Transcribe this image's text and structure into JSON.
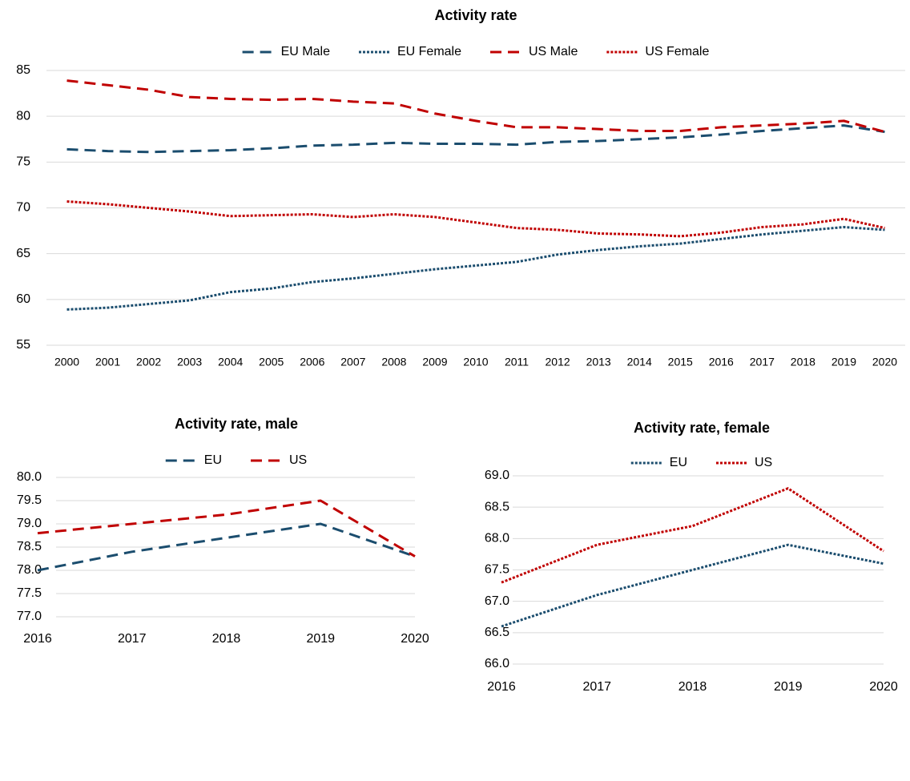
{
  "chart_data": [
    {
      "type": "line",
      "title": "Activity rate",
      "categories": [
        "2000",
        "2001",
        "2002",
        "2003",
        "2004",
        "2005",
        "2006",
        "2007",
        "2008",
        "2009",
        "2010",
        "2011",
        "2012",
        "2013",
        "2014",
        "2015",
        "2016",
        "2017",
        "2018",
        "2019",
        "2020"
      ],
      "series": [
        {
          "name": "EU Male",
          "color": "#1b4d6e",
          "style": "dashed",
          "values": [
            76.4,
            76.2,
            76.1,
            76.2,
            76.3,
            76.5,
            76.8,
            76.9,
            77.1,
            77.0,
            77.0,
            76.9,
            77.2,
            77.3,
            77.5,
            77.7,
            78.0,
            78.4,
            78.7,
            79.0,
            78.3
          ]
        },
        {
          "name": "EU Female",
          "color": "#1b4d6e",
          "style": "dotted",
          "values": [
            58.9,
            59.1,
            59.5,
            59.9,
            60.8,
            61.2,
            61.9,
            62.3,
            62.8,
            63.3,
            63.7,
            64.1,
            64.9,
            65.4,
            65.8,
            66.1,
            66.6,
            67.1,
            67.5,
            67.9,
            67.6
          ]
        },
        {
          "name": "US Male",
          "color": "#c00000",
          "style": "dashed",
          "values": [
            83.9,
            83.4,
            82.9,
            82.1,
            81.9,
            81.8,
            81.9,
            81.6,
            81.4,
            80.3,
            79.5,
            78.8,
            78.8,
            78.6,
            78.4,
            78.4,
            78.8,
            79.0,
            79.2,
            79.5,
            78.3
          ]
        },
        {
          "name": "US Female",
          "color": "#c00000",
          "style": "dotted",
          "values": [
            70.7,
            70.4,
            70.0,
            69.6,
            69.1,
            69.2,
            69.3,
            69.0,
            69.3,
            69.0,
            68.4,
            67.8,
            67.6,
            67.2,
            67.1,
            66.9,
            67.3,
            67.9,
            68.2,
            68.8,
            67.8
          ]
        }
      ],
      "ylim": [
        55,
        85
      ],
      "yticks": [
        55,
        60,
        65,
        70,
        75,
        80,
        85
      ],
      "grid": true
    },
    {
      "type": "line",
      "title": "Activity rate, male",
      "categories": [
        "2016",
        "2017",
        "2018",
        "2019",
        "2020"
      ],
      "series": [
        {
          "name": "EU",
          "color": "#1b4d6e",
          "style": "dashed",
          "values": [
            78.0,
            78.4,
            78.7,
            79.0,
            78.3
          ]
        },
        {
          "name": "US",
          "color": "#c00000",
          "style": "dashed",
          "values": [
            78.8,
            79.0,
            79.2,
            79.5,
            78.3
          ]
        }
      ],
      "ylim": [
        77,
        80
      ],
      "yticks": [
        {
          "value": 77,
          "label": "77.0"
        },
        77.5,
        {
          "value": 78,
          "label": "78.0"
        },
        78.5,
        {
          "value": 79,
          "label": "79.0"
        },
        79.5,
        {
          "value": 80,
          "label": "80.0"
        }
      ],
      "grid": true
    },
    {
      "type": "line",
      "title": "Activity rate, female",
      "categories": [
        "2016",
        "2017",
        "2018",
        "2019",
        "2020"
      ],
      "series": [
        {
          "name": "EU",
          "color": "#1b4d6e",
          "style": "dotted",
          "values": [
            66.6,
            67.1,
            67.5,
            67.9,
            67.6
          ]
        },
        {
          "name": "US",
          "color": "#c00000",
          "style": "dotted",
          "values": [
            67.3,
            67.9,
            68.2,
            68.8,
            67.8
          ]
        }
      ],
      "ylim": [
        66,
        69
      ],
      "yticks": [
        {
          "value": 66,
          "label": "66.0"
        },
        66.5,
        {
          "value": 67,
          "label": "67.0"
        },
        67.5,
        {
          "value": 68,
          "label": "68.0"
        },
        68.5,
        {
          "value": 69,
          "label": "69.0"
        }
      ],
      "grid": true
    }
  ]
}
